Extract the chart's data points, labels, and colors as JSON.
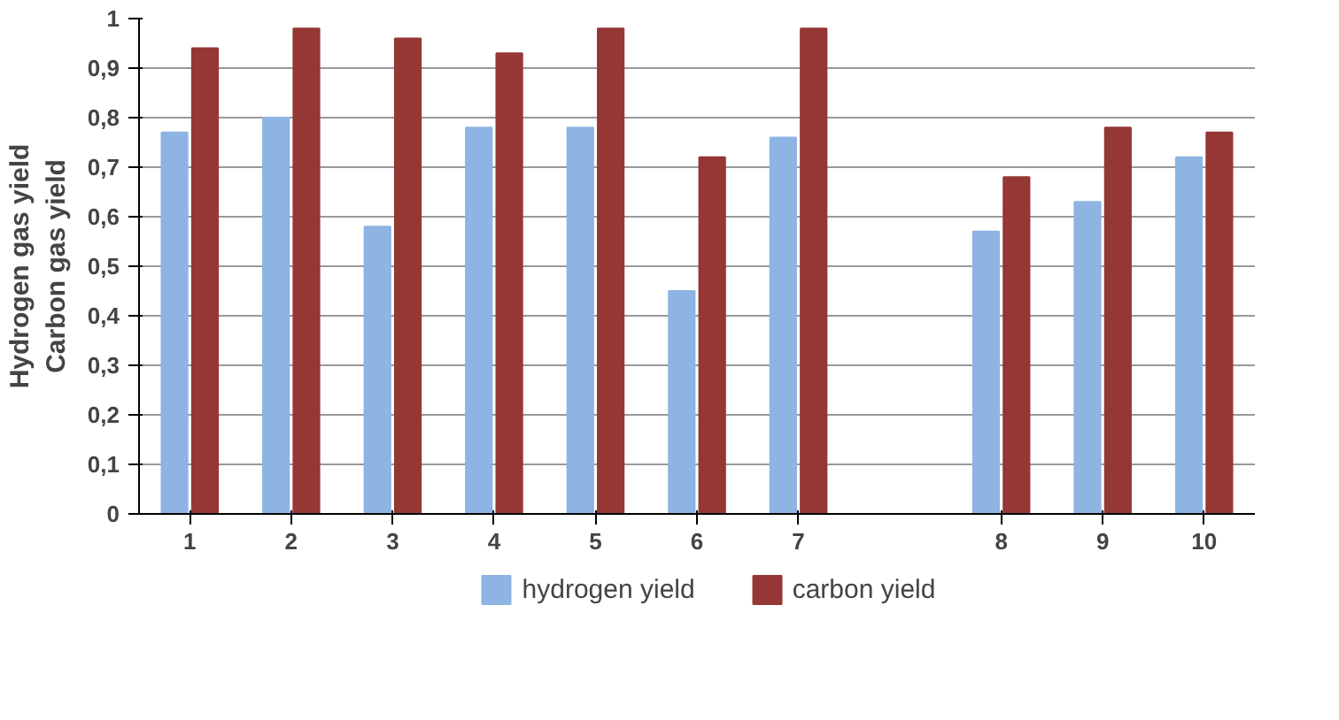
{
  "chart_data": {
    "type": "bar",
    "ylabel": "Hydrogen gas yield\nCarbon gas yield",
    "categories": [
      "1",
      "2",
      "3",
      "4",
      "5",
      "6",
      "7",
      null,
      "8",
      "9",
      "10"
    ],
    "series": [
      {
        "name": "hydrogen yield",
        "color": "#8db4e2",
        "values": [
          0.77,
          0.8,
          0.58,
          0.78,
          0.78,
          0.45,
          0.76,
          null,
          0.57,
          0.63,
          0.72
        ]
      },
      {
        "name": "carbon yield",
        "color": "#953735",
        "values": [
          0.94,
          0.98,
          0.96,
          0.93,
          0.98,
          0.72,
          0.98,
          null,
          0.68,
          0.78,
          0.77
        ]
      }
    ],
    "ylim": [
      0,
      1
    ],
    "yticks": [
      0,
      {
        "value": 0.1,
        "label": "0,1"
      },
      {
        "value": 0.2,
        "label": "0,2"
      },
      {
        "value": 0.3,
        "label": "0,3"
      },
      {
        "value": 0.4,
        "label": "0,4"
      },
      {
        "value": 0.5,
        "label": "0,5"
      },
      {
        "value": 0.6,
        "label": "0,6"
      },
      {
        "value": 0.7,
        "label": "0,7"
      },
      {
        "value": 0.8,
        "label": "0,8"
      },
      {
        "value": 0.9,
        "label": "0,9"
      },
      1
    ],
    "grid": "y",
    "legend": "bottom"
  }
}
